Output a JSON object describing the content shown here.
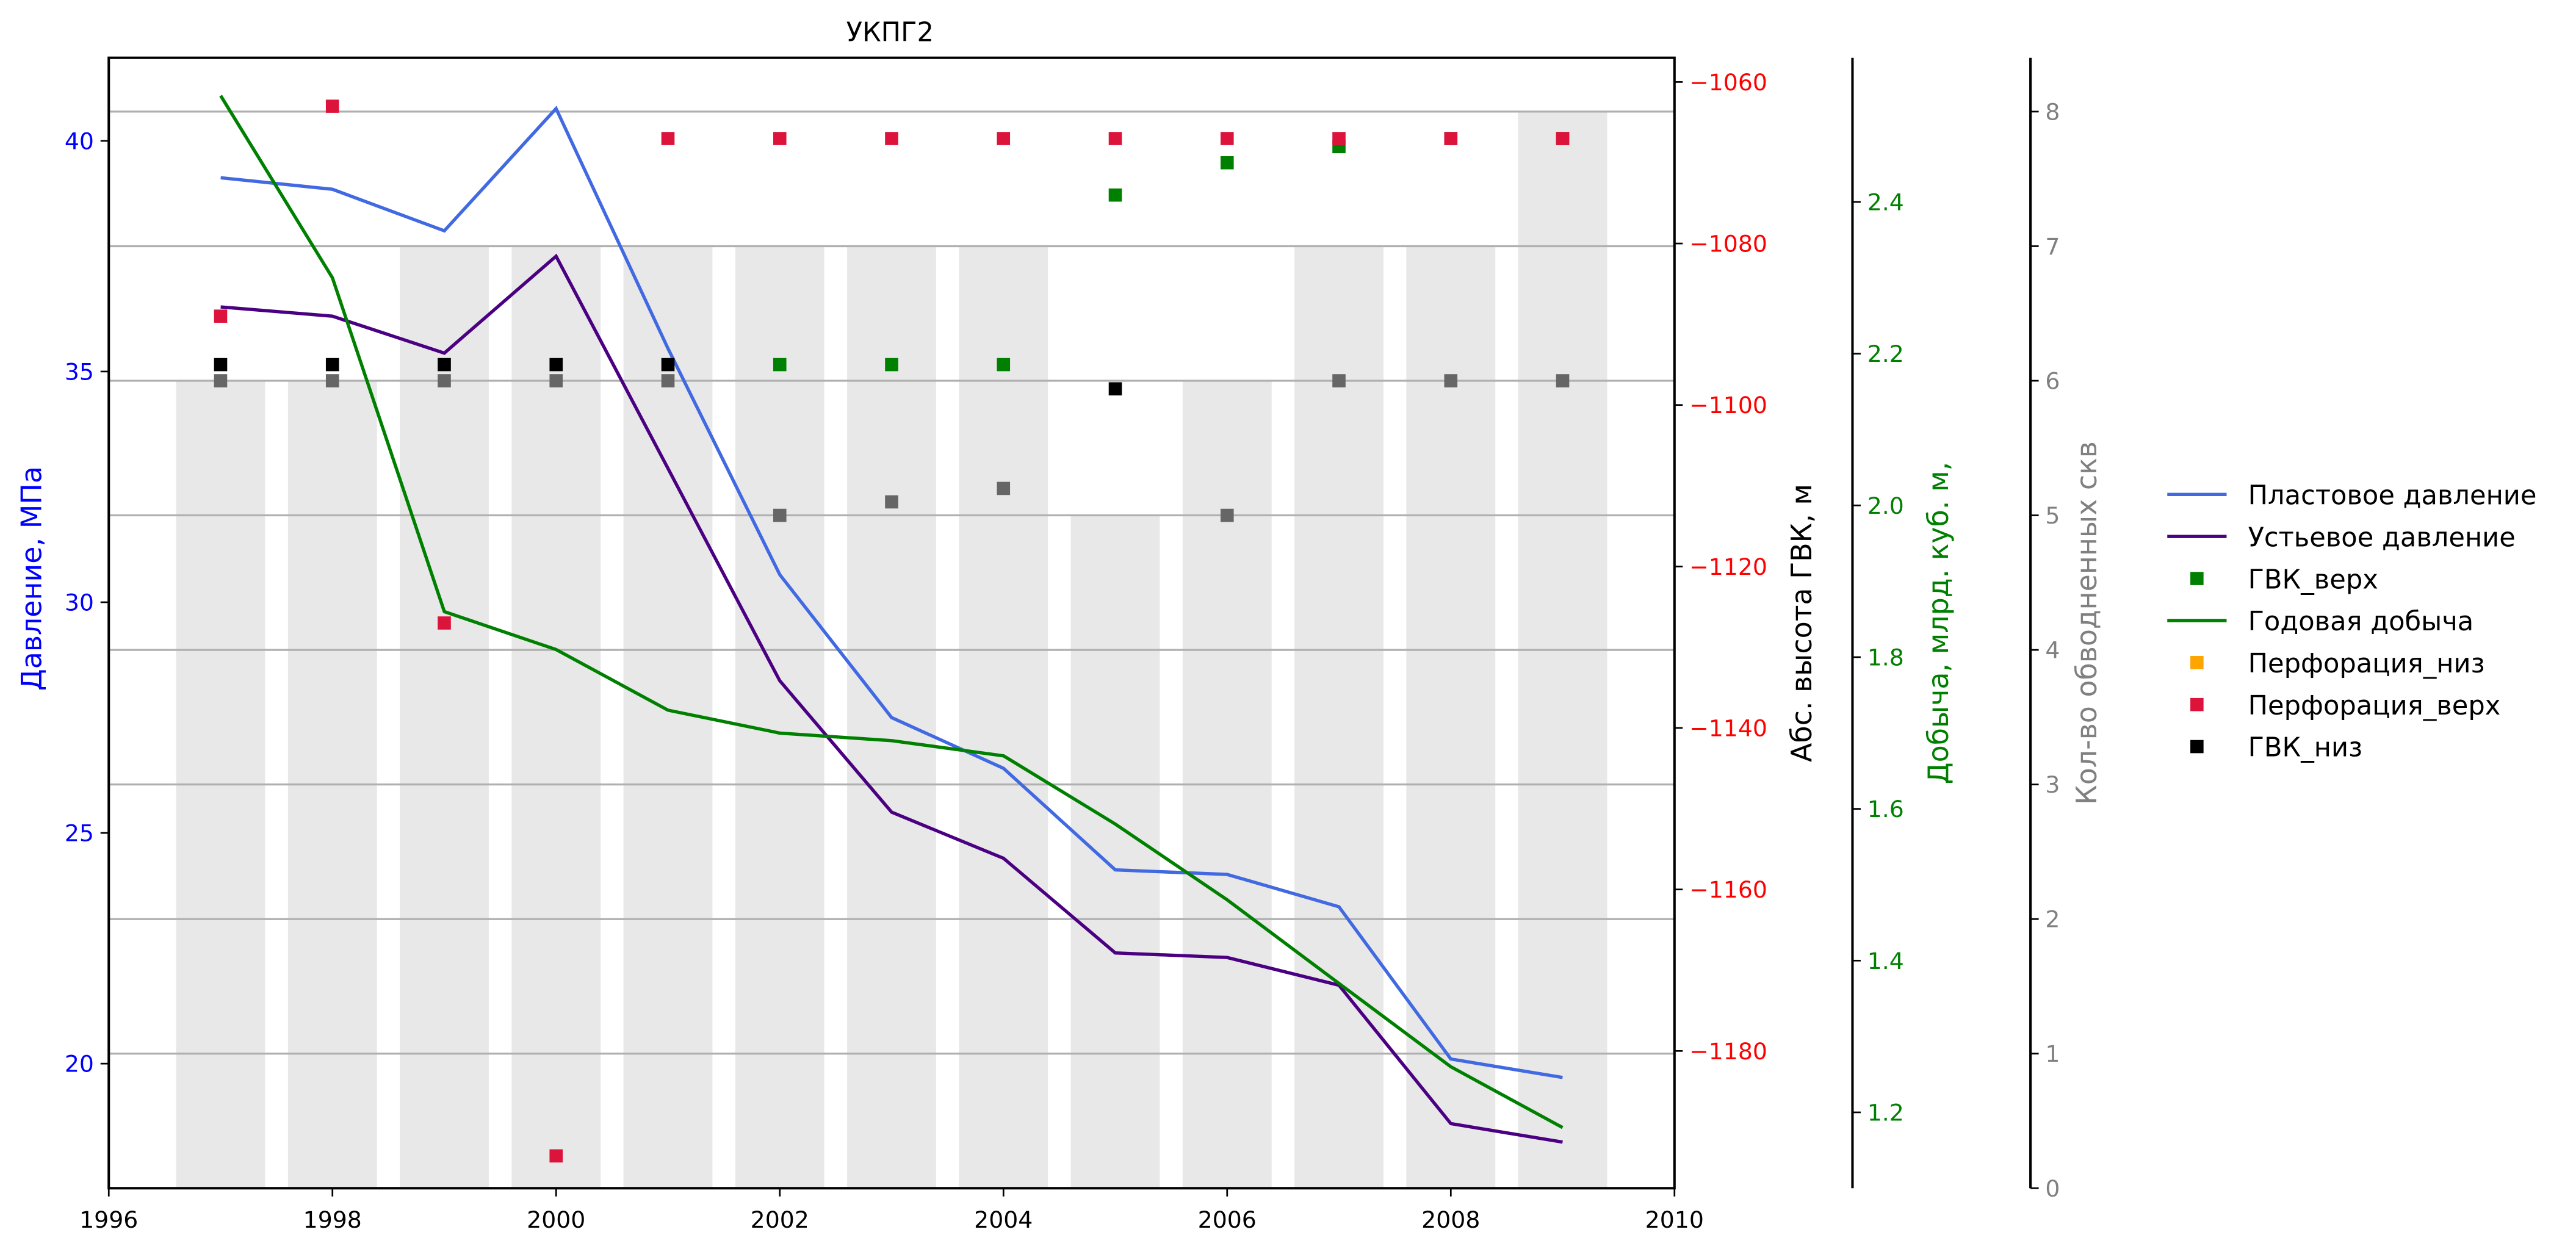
{
  "chart_data": {
    "type": "line",
    "title": "УКПГ2",
    "x": [
      1997,
      1998,
      1999,
      2000,
      2001,
      2002,
      2003,
      2004,
      2005,
      2006,
      2007,
      2008,
      2009
    ],
    "xlim": [
      1996,
      2010
    ],
    "xticks": [
      "1996",
      "1998",
      "2000",
      "2002",
      "2004",
      "2006",
      "2008",
      "2010"
    ],
    "axes": {
      "pressure": {
        "label": "Давление, МПа",
        "color": "#0000ff",
        "ylim": [
          17.3,
          41.8
        ],
        "ticks": [
          "20",
          "25",
          "30",
          "35",
          "40"
        ]
      },
      "gvk": {
        "label": "Абс. высота ГВК, м",
        "color": "#ff0000",
        "ylim": [
          -1197,
          -1057
        ],
        "ticks": [
          "−1060",
          "−1080",
          "−1100",
          "−1120",
          "−1140",
          "−1160",
          "−1180"
        ]
      },
      "production": {
        "label": "Добыча, млрд. куб. м,",
        "color": "#008000",
        "ylim": [
          1.1,
          2.59
        ],
        "ticks": [
          "1.2",
          "1.4",
          "1.6",
          "1.8",
          "2.0",
          "2.2",
          "2.4"
        ]
      },
      "wells": {
        "label": "Кол-во обводненных скв",
        "color": "#808080",
        "ylim": [
          0,
          8.4
        ],
        "ticks": [
          "0",
          "1",
          "2",
          "3",
          "4",
          "5",
          "6",
          "7",
          "8"
        ]
      }
    },
    "bars_wells": [
      6,
      6,
      7,
      7,
      7,
      7,
      7,
      7,
      5,
      6,
      7,
      7,
      8
    ],
    "wells_markers": [
      6,
      6,
      6,
      6,
      6,
      5,
      5.1,
      5.2,
      null,
      5,
      6,
      6,
      6
    ],
    "series": [
      {
        "name": "Пластовое давление",
        "axis": "pressure",
        "color": "#4169e1",
        "values": [
          39.2,
          38.95,
          38.05,
          40.7,
          35.5,
          30.6,
          27.5,
          26.4,
          24.2,
          24.1,
          23.4,
          20.1,
          19.7
        ]
      },
      {
        "name": "Устьевое давление",
        "axis": "pressure",
        "color": "#4b0082",
        "values": [
          36.4,
          36.2,
          35.4,
          37.5,
          32.9,
          28.3,
          25.45,
          24.45,
          22.4,
          22.3,
          21.7,
          18.7,
          18.3
        ]
      },
      {
        "name": "ГВК_верх",
        "axis": "gvk",
        "color": "#008000",
        "values": [
          null,
          null,
          null,
          null,
          null,
          -1095,
          -1095,
          -1095,
          -1074,
          -1070,
          -1068,
          -1067,
          -1067
        ]
      },
      {
        "name": "Годовая добыча",
        "axis": "production",
        "color": "#008000",
        "values": [
          2.54,
          2.3,
          1.86,
          1.81,
          1.73,
          1.7,
          1.69,
          1.67,
          1.58,
          1.48,
          1.37,
          1.26,
          1.18
        ]
      },
      {
        "name": "Перфорация_низ",
        "axis": "gvk",
        "color": "#ffa500",
        "values": [
          null,
          null,
          null,
          null,
          null,
          null,
          null,
          null,
          null,
          null,
          null,
          null,
          null
        ]
      },
      {
        "name": "Перфорация_верх",
        "axis": "gvk",
        "color": "#dc143c",
        "values": [
          -1089,
          -1063,
          -1127,
          -1193,
          -1067,
          -1067,
          -1067,
          -1067,
          -1067,
          -1067,
          -1067,
          -1067,
          -1067
        ]
      },
      {
        "name": "ГВК_низ",
        "axis": "gvk",
        "color": "#000000",
        "values": [
          -1095,
          -1095,
          -1095,
          -1095,
          -1095,
          null,
          null,
          null,
          -1098,
          null,
          null,
          null,
          null
        ]
      }
    ],
    "legend": "right",
    "grid": "horizontal"
  }
}
